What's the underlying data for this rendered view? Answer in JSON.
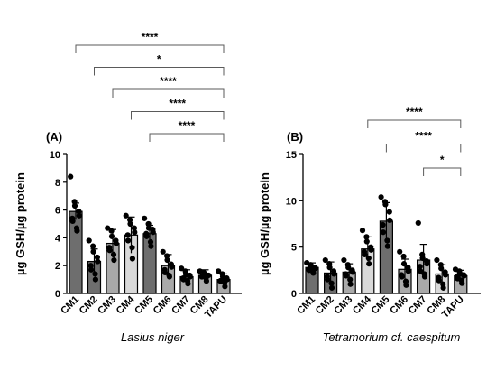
{
  "chart_data": [
    {
      "type": "bar",
      "panel_label": "(A)",
      "xlabel": "Lasius niger",
      "ylabel": "µg GSH/µg protein",
      "ylim": [
        0,
        10
      ],
      "yticks": [
        0,
        2,
        4,
        6,
        8,
        10
      ],
      "categories": [
        "CM1",
        "CM2",
        "CM3",
        "CM4",
        "CM5",
        "CM6",
        "CM7",
        "CM8",
        "TAPU"
      ],
      "values": [
        5.9,
        2.3,
        3.6,
        4.2,
        4.3,
        2.0,
        1.2,
        1.3,
        1.0
      ],
      "errors": [
        0.6,
        0.9,
        1.0,
        1.3,
        0.6,
        0.8,
        0.5,
        0.4,
        0.4
      ],
      "bar_colors": [
        "#6e6e6e",
        "#6e6e6e",
        "#a9a9a9",
        "#d9d9d9",
        "#6e6e6e",
        "#a9a9a9",
        "#a9a9a9",
        "#a9a9a9",
        "#a9a9a9"
      ],
      "points": [
        [
          8.4,
          6.6,
          6.3,
          5.9,
          5.6,
          5.4,
          5.2,
          4.7,
          4.5
        ],
        [
          3.8,
          3.4,
          3.0,
          2.6,
          2.3,
          2.0,
          1.7,
          1.4,
          1.0
        ],
        [
          4.7,
          4.5,
          4.1,
          3.8,
          3.6,
          3.3,
          3.1,
          2.8,
          2.4
        ],
        [
          5.6,
          5.3,
          5.0,
          4.7,
          4.4,
          4.2,
          3.8,
          3.3,
          2.5
        ],
        [
          5.4,
          5.0,
          4.7,
          4.6,
          4.4,
          4.3,
          4.1,
          3.7,
          3.4
        ],
        [
          3.0,
          2.7,
          2.4,
          2.1,
          1.9,
          1.7,
          1.5,
          1.3,
          1.2
        ],
        [
          1.8,
          1.6,
          1.4,
          1.3,
          1.2,
          1.1,
          1.0,
          0.9,
          0.7
        ],
        [
          1.6,
          1.5,
          1.4,
          1.3,
          1.3,
          1.2,
          1.2,
          1.1,
          0.9
        ],
        [
          1.6,
          1.4,
          1.2,
          1.1,
          1.0,
          0.9,
          0.9,
          0.8,
          0.5
        ]
      ],
      "comparisons": [
        {
          "from": "CM1",
          "to": "TAPU",
          "label": "****"
        },
        {
          "from": "CM2",
          "to": "TAPU",
          "label": "*"
        },
        {
          "from": "CM3",
          "to": "TAPU",
          "label": "****"
        },
        {
          "from": "CM4",
          "to": "TAPU",
          "label": "****"
        },
        {
          "from": "CM5",
          "to": "TAPU",
          "label": "****"
        }
      ]
    },
    {
      "type": "bar",
      "panel_label": "(B)",
      "xlabel": "Tetramorium cf. caespitum",
      "ylabel": "µg GSH/µg protein",
      "ylim": [
        0,
        15
      ],
      "yticks": [
        0,
        5,
        10,
        15
      ],
      "categories": [
        "CM1",
        "CM2",
        "CM3",
        "CM4",
        "CM5",
        "CM6",
        "CM7",
        "CM8",
        "TAPU"
      ],
      "values": [
        2.8,
        2.2,
        2.3,
        4.8,
        7.8,
        2.6,
        3.6,
        2.1,
        1.9
      ],
      "errors": [
        0.5,
        1.2,
        0.9,
        1.3,
        2.0,
        1.1,
        1.7,
        1.0,
        0.6
      ],
      "bar_colors": [
        "#6e6e6e",
        "#6e6e6e",
        "#a9a9a9",
        "#d9d9d9",
        "#6e6e6e",
        "#a9a9a9",
        "#a9a9a9",
        "#d9d9d9",
        "#a9a9a9"
      ],
      "points": [
        [
          3.3,
          3.1,
          2.9,
          2.8,
          2.7,
          2.6,
          2.5,
          2.4,
          2.2
        ],
        [
          3.6,
          3.2,
          2.8,
          2.4,
          2.1,
          1.8,
          1.5,
          1.1,
          0.6
        ],
        [
          3.6,
          3.1,
          2.8,
          2.5,
          2.3,
          2.1,
          1.9,
          1.5,
          1.0
        ],
        [
          6.8,
          6.1,
          5.6,
          5.0,
          4.7,
          4.5,
          4.2,
          3.8,
          3.2
        ],
        [
          10.4,
          9.9,
          9.6,
          8.8,
          7.9,
          7.4,
          6.6,
          5.7,
          5.1
        ],
        [
          4.5,
          4.0,
          3.2,
          2.8,
          2.4,
          2.0,
          1.8,
          1.3,
          0.9
        ],
        [
          7.6,
          4.2,
          3.8,
          3.5,
          3.2,
          2.9,
          2.4,
          2.1,
          1.8
        ],
        [
          3.6,
          3.1,
          2.7,
          2.3,
          2.0,
          1.7,
          1.4,
          1.0,
          0.6
        ],
        [
          2.6,
          2.4,
          2.2,
          2.0,
          1.9,
          1.8,
          1.6,
          1.4,
          1.1
        ]
      ],
      "comparisons": [
        {
          "from": "CM4",
          "to": "TAPU",
          "label": "****"
        },
        {
          "from": "CM5",
          "to": "TAPU",
          "label": "****"
        },
        {
          "from": "CM7",
          "to": "TAPU",
          "label": "*"
        }
      ]
    }
  ]
}
